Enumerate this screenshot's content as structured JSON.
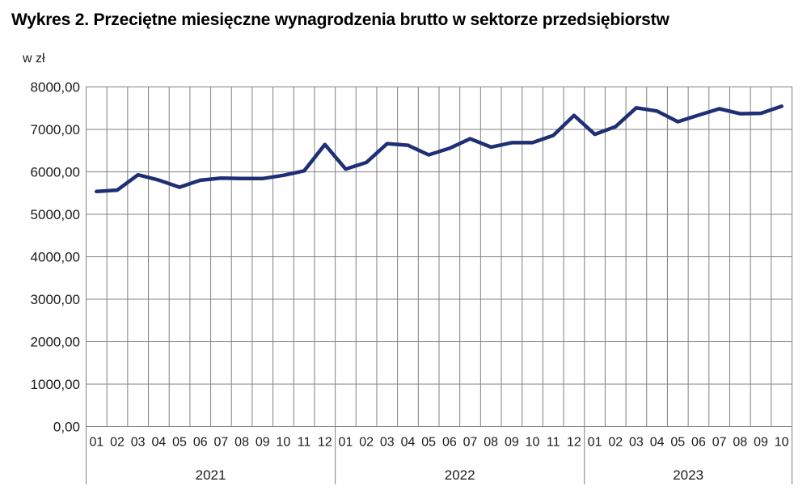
{
  "chart_data": {
    "type": "line",
    "title": "Wykres 2. Przeciętne miesięczne wynagrodzenia brutto w sektorze przedsiębiorstw",
    "unit_label": "w zł",
    "xlabel": "",
    "ylabel": "w zł",
    "ylim": [
      0,
      8000
    ],
    "y_tick_labels": [
      "0,00",
      "1000,00",
      "2000,00",
      "3000,00",
      "4000,00",
      "5000,00",
      "6000,00",
      "7000,00",
      "8000,00"
    ],
    "grid": true,
    "legend": "none",
    "colors": {
      "line": "#1e2f74",
      "grid": "#808080",
      "axis_text": "#1a1a1a",
      "title_text": "#000000"
    },
    "years": [
      {
        "label": "2021",
        "months": [
          "01",
          "02",
          "03",
          "04",
          "05",
          "06",
          "07",
          "08",
          "09",
          "10",
          "11",
          "12"
        ],
        "values": [
          5536.8,
          5568.82,
          5929.05,
          5805.72,
          5637.34,
          5802.42,
          5851.87,
          5843.75,
          5841.16,
          5917.15,
          6022.49,
          6644.39
        ]
      },
      {
        "label": "2022",
        "months": [
          "01",
          "02",
          "03",
          "04",
          "05",
          "06",
          "07",
          "08",
          "09",
          "10",
          "11",
          "12"
        ],
        "values": [
          6064.24,
          6220.04,
          6665.64,
          6626.95,
          6399.59,
          6554.87,
          6778.63,
          6583.03,
          6687.81,
          6687.92,
          6857.96,
          7329.96
        ]
      },
      {
        "label": "2023",
        "months": [
          "01",
          "02",
          "03",
          "04",
          "05",
          "06",
          "07",
          "08",
          "09",
          "10"
        ],
        "values": [
          6883.96,
          7065.56,
          7508.34,
          7430.65,
          7181.67,
          7335.2,
          7485.12,
          7368.97,
          7379.88,
          7544.98
        ]
      }
    ]
  }
}
